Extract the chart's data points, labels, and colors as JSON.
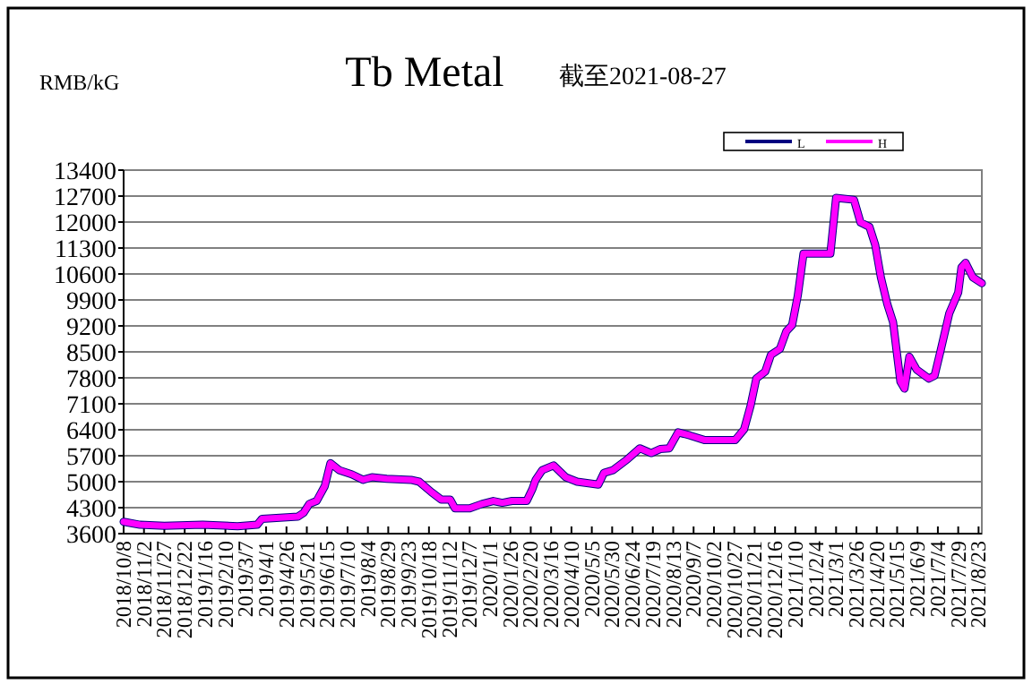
{
  "chart_data": {
    "type": "line",
    "title": "Tb Metal",
    "subtitle": "截至2021-08-27",
    "ylabel": "RMB/kG",
    "x": [
      "2018-10-08",
      "2018-10-28",
      "2018-11-27",
      "2019-01-13",
      "2019-02-25",
      "2019-03-21",
      "2019-03-27",
      "2019-04-18",
      "2019-05-10",
      "2019-05-17",
      "2019-05-24",
      "2019-06-02",
      "2019-06-12",
      "2019-06-19",
      "2019-06-30",
      "2019-07-15",
      "2019-07-29",
      "2019-08-09",
      "2019-08-27",
      "2019-09-26",
      "2019-10-06",
      "2019-10-21",
      "2019-11-02",
      "2019-11-13",
      "2019-11-19",
      "2019-12-07",
      "2019-12-22",
      "2020-01-05",
      "2020-01-16",
      "2020-01-28",
      "2020-02-15",
      "2020-02-22",
      "2020-02-26",
      "2020-03-05",
      "2020-03-19",
      "2020-04-03",
      "2020-04-17",
      "2020-05-13",
      "2020-05-20",
      "2020-05-31",
      "2020-06-18",
      "2020-07-03",
      "2020-07-17",
      "2020-07-28",
      "2020-08-08",
      "2020-08-19",
      "2020-09-02",
      "2020-09-21",
      "2020-10-28",
      "2020-11-08",
      "2020-11-16",
      "2020-11-23",
      "2020-12-04",
      "2020-12-11",
      "2020-12-22",
      "2020-12-30",
      "2021-01-06",
      "2021-01-13",
      "2021-01-20",
      "2021-02-22",
      "2021-03-01",
      "2021-03-23",
      "2021-03-31",
      "2021-04-11",
      "2021-04-18",
      "2021-04-25",
      "2021-05-03",
      "2021-05-10",
      "2021-05-19",
      "2021-05-24",
      "2021-05-30",
      "2021-06-08",
      "2021-06-23",
      "2021-06-30",
      "2021-07-07",
      "2021-07-18",
      "2021-07-29",
      "2021-08-02",
      "2021-08-07",
      "2021-08-16",
      "2021-08-27"
    ],
    "series": [
      {
        "name": "L",
        "color": "#000080",
        "values": [
          3920,
          3840,
          3810,
          3840,
          3800,
          3840,
          4000,
          4030,
          4060,
          4160,
          4400,
          4480,
          4880,
          5500,
          5310,
          5200,
          5050,
          5120,
          5080,
          5050,
          5000,
          4720,
          4520,
          4520,
          4280,
          4280,
          4400,
          4480,
          4430,
          4480,
          4480,
          4800,
          5050,
          5310,
          5440,
          5120,
          5000,
          4920,
          5240,
          5310,
          5610,
          5900,
          5770,
          5880,
          5900,
          6330,
          6250,
          6120,
          6120,
          6410,
          7050,
          7780,
          7970,
          8420,
          8580,
          9060,
          9220,
          10020,
          11150,
          11150,
          12650,
          12600,
          11990,
          11870,
          11390,
          10510,
          9780,
          9300,
          7700,
          7510,
          8370,
          8020,
          7780,
          7860,
          8500,
          9540,
          10100,
          10780,
          10900,
          10510,
          10350
        ]
      },
      {
        "name": "H",
        "color": "#ff00ff",
        "values": [
          3920,
          3840,
          3810,
          3840,
          3800,
          3840,
          4000,
          4030,
          4060,
          4160,
          4400,
          4480,
          4880,
          5500,
          5310,
          5200,
          5050,
          5120,
          5080,
          5050,
          5000,
          4720,
          4520,
          4520,
          4280,
          4280,
          4400,
          4480,
          4430,
          4480,
          4480,
          4800,
          5050,
          5310,
          5440,
          5120,
          5000,
          4920,
          5240,
          5310,
          5610,
          5900,
          5770,
          5880,
          5900,
          6330,
          6250,
          6120,
          6120,
          6410,
          7050,
          7780,
          7970,
          8420,
          8580,
          9060,
          9220,
          10020,
          11150,
          11150,
          12650,
          12600,
          11990,
          11870,
          11390,
          10510,
          9780,
          9300,
          7700,
          7510,
          8370,
          8020,
          7780,
          7860,
          8500,
          9540,
          10100,
          10780,
          10900,
          10510,
          10350
        ]
      }
    ],
    "xlim": [
      "2018-10-08",
      "2021-08-27"
    ],
    "xticks": [
      {
        "value": "2018-10-08",
        "label": "2018/10/8"
      },
      {
        "value": "2018-11-02",
        "label": "2018/11/2"
      },
      {
        "value": "2018-11-27",
        "label": "2018/11/27"
      },
      {
        "value": "2018-12-22",
        "label": "2018/12/22"
      },
      {
        "value": "2019-01-16",
        "label": "2019/1/16"
      },
      {
        "value": "2019-02-10",
        "label": "2019/2/10"
      },
      {
        "value": "2019-03-07",
        "label": "2019/3/7"
      },
      {
        "value": "2019-04-01",
        "label": "2019/4/1"
      },
      {
        "value": "2019-04-26",
        "label": "2019/4/26"
      },
      {
        "value": "2019-05-21",
        "label": "2019/5/21"
      },
      {
        "value": "2019-06-15",
        "label": "2019/6/15"
      },
      {
        "value": "2019-07-10",
        "label": "2019/7/10"
      },
      {
        "value": "2019-08-04",
        "label": "2019/8/4"
      },
      {
        "value": "2019-08-29",
        "label": "2019/8/29"
      },
      {
        "value": "2019-09-23",
        "label": "2019/9/23"
      },
      {
        "value": "2019-10-18",
        "label": "2019/10/18"
      },
      {
        "value": "2019-11-12",
        "label": "2019/11/12"
      },
      {
        "value": "2019-12-07",
        "label": "2019/12/7"
      },
      {
        "value": "2020-01-01",
        "label": "2020/1/1"
      },
      {
        "value": "2020-01-26",
        "label": "2020/1/26"
      },
      {
        "value": "2020-02-20",
        "label": "2020/2/20"
      },
      {
        "value": "2020-03-16",
        "label": "2020/3/16"
      },
      {
        "value": "2020-04-10",
        "label": "2020/4/10"
      },
      {
        "value": "2020-05-05",
        "label": "2020/5/5"
      },
      {
        "value": "2020-05-30",
        "label": "2020/5/30"
      },
      {
        "value": "2020-06-24",
        "label": "2020/6/24"
      },
      {
        "value": "2020-07-19",
        "label": "2020/7/19"
      },
      {
        "value": "2020-08-13",
        "label": "2020/8/13"
      },
      {
        "value": "2020-09-07",
        "label": "2020/9/7"
      },
      {
        "value": "2020-10-02",
        "label": "2020/10/2"
      },
      {
        "value": "2020-10-27",
        "label": "2020/10/27"
      },
      {
        "value": "2020-11-21",
        "label": "2020/11/21"
      },
      {
        "value": "2020-12-16",
        "label": "2020/12/16"
      },
      {
        "value": "2021-01-10",
        "label": "2021/1/10"
      },
      {
        "value": "2021-02-04",
        "label": "2021/2/4"
      },
      {
        "value": "2021-03-01",
        "label": "2021/3/1"
      },
      {
        "value": "2021-03-26",
        "label": "2021/3/26"
      },
      {
        "value": "2021-04-20",
        "label": "2021/4/20"
      },
      {
        "value": "2021-05-15",
        "label": "2021/5/15"
      },
      {
        "value": "2021-06-09",
        "label": "2021/6/9"
      },
      {
        "value": "2021-07-04",
        "label": "2021/7/4"
      },
      {
        "value": "2021-07-29",
        "label": "2021/7/29"
      },
      {
        "value": "2021-08-23",
        "label": "2021/8/23"
      }
    ],
    "ylim": [
      3600,
      13400
    ],
    "yticks": [
      3600,
      4300,
      5000,
      5700,
      6400,
      7100,
      7800,
      8500,
      9200,
      9900,
      10600,
      11300,
      12000,
      12700,
      13400
    ],
    "grid": "y",
    "legend": "top right",
    "marker": "none",
    "line_style": "solid"
  }
}
